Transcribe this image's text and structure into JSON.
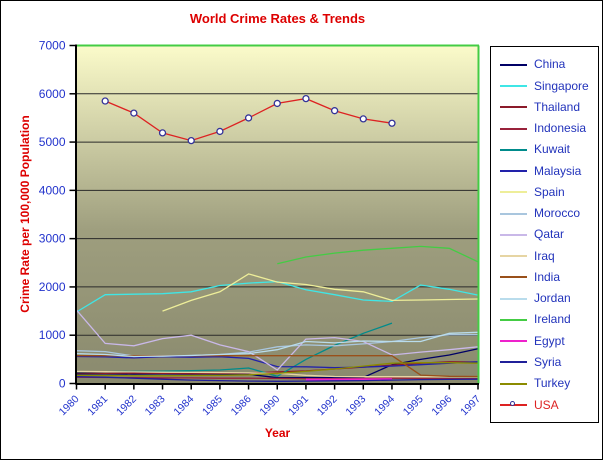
{
  "window": {
    "title": "World Crime Rates & Trends"
  },
  "colors": {
    "title_text": "#dd0000",
    "axis_title_text": "#dd0000",
    "tick_label_text": "#2233cc",
    "legend_label_text": "#2233bb",
    "usa_legend_label_text": "#dd2222",
    "plot_top_right_border": "#44cc44",
    "axis_line": "#000000",
    "gridline": "#2a2a2a",
    "plot_bg_top": "#fbfbca",
    "plot_bg_mid": "#9e9e7e",
    "plot_bg_bottom": "#8a8a6e",
    "marker_outline": "#333399",
    "marker_fill": "#ffffff"
  },
  "chart_data": {
    "type": "line",
    "title": "World Crime Rates & Trends",
    "xlabel": "Year",
    "ylabel": "Crime Rate per 100,000 Population",
    "ylim": [
      0,
      7000
    ],
    "ytick_interval": 1000,
    "grid": "horizontal-only",
    "legend_position": "right",
    "categories": [
      "1980",
      "1981",
      "1982",
      "1983",
      "1984",
      "1985",
      "1986",
      "1990",
      "1991",
      "1992",
      "1993",
      "1994",
      "1995",
      "1996",
      "1997"
    ],
    "series": [
      {
        "name": "China",
        "color": "#000066",
        "marker": false,
        "values": [
          200,
          200,
          195,
          200,
          195,
          200,
          190,
          120,
          120,
          120,
          125,
          390,
          500,
          590,
          720
        ]
      },
      {
        "name": "Singapore",
        "color": "#3fe6e6",
        "marker": false,
        "values": [
          1480,
          1840,
          1850,
          1860,
          1900,
          2030,
          2080,
          2110,
          1940,
          1840,
          1730,
          1700,
          2040,
          1950,
          1830
        ]
      },
      {
        "name": "Thailand",
        "color": "#8b1a2a",
        "marker": false,
        "values": [
          220,
          210,
          215,
          210,
          205,
          210,
          215,
          240,
          260,
          300,
          340,
          380,
          420,
          450,
          445
        ]
      },
      {
        "name": "Indonesia",
        "color": "#99223b",
        "marker": false,
        "values": [
          130,
          125,
          120,
          115,
          115,
          110,
          110,
          105,
          100,
          100,
          105,
          110,
          105,
          100,
          100
        ]
      },
      {
        "name": "Kuwait",
        "color": "#008b8b",
        "marker": false,
        "values": [
          240,
          245,
          250,
          255,
          265,
          280,
          320,
          150,
          500,
          790,
          1040,
          1250,
          null,
          null,
          null
        ]
      },
      {
        "name": "Malaysia",
        "color": "#2222aa",
        "marker": false,
        "values": [
          560,
          550,
          530,
          555,
          545,
          555,
          520,
          350,
          345,
          330,
          340,
          360,
          390,
          420,
          450
        ]
      },
      {
        "name": "Spain",
        "color": "#eeee99",
        "marker": false,
        "values": [
          null,
          null,
          null,
          1500,
          1720,
          1900,
          2270,
          2100,
          2050,
          1950,
          1900,
          1720,
          1730,
          1740,
          1750
        ]
      },
      {
        "name": "Morocco",
        "color": "#a9c6de",
        "marker": false,
        "values": [
          680,
          660,
          570,
          565,
          580,
          600,
          650,
          760,
          800,
          780,
          820,
          870,
          950,
          1010,
          1010
        ]
      },
      {
        "name": "Qatar",
        "color": "#c9b8e8",
        "marker": false,
        "values": [
          1520,
          830,
          780,
          930,
          1000,
          800,
          660,
          280,
          920,
          950,
          870,
          590,
          650,
          700,
          760
        ]
      },
      {
        "name": "Iraq",
        "color": "#e6d5a3",
        "marker": false,
        "values": [
          250,
          245,
          240,
          235,
          230,
          225,
          220,
          210,
          170,
          145,
          140,
          140,
          140,
          140,
          140
        ]
      },
      {
        "name": "India",
        "color": "#99501a",
        "marker": false,
        "values": [
          575,
          575,
          575,
          575,
          575,
          575,
          575,
          575,
          575,
          575,
          575,
          575,
          175,
          150,
          145
        ]
      },
      {
        "name": "Jordan",
        "color": "#b9dcec",
        "marker": false,
        "values": [
          620,
          600,
          560,
          570,
          580,
          600,
          620,
          700,
          870,
          840,
          880,
          870,
          870,
          1040,
          1060
        ]
      },
      {
        "name": "Ireland",
        "color": "#44cc44",
        "marker": false,
        "values": [
          null,
          null,
          null,
          null,
          null,
          null,
          null,
          2480,
          2620,
          2700,
          2760,
          2800,
          2840,
          2800,
          2520
        ]
      },
      {
        "name": "Egypt",
        "color": "#ee22cc",
        "marker": false,
        "values": [
          null,
          null,
          null,
          null,
          null,
          null,
          null,
          null,
          80,
          80,
          85,
          90,
          null,
          null,
          null
        ]
      },
      {
        "name": "Syria",
        "color": "#202099",
        "marker": false,
        "values": [
          140,
          130,
          110,
          90,
          70,
          60,
          50,
          45,
          50,
          55,
          60,
          70,
          80,
          85,
          90
        ]
      },
      {
        "name": "Turkey",
        "color": "#8b8b00",
        "marker": false,
        "values": [
          170,
          165,
          160,
          160,
          165,
          170,
          180,
          210,
          250,
          300,
          360,
          420,
          430,
          430,
          420
        ]
      },
      {
        "name": "USA",
        "color": "#dd2222",
        "marker": true,
        "values": [
          null,
          5850,
          5600,
          5190,
          5030,
          5220,
          5500,
          5800,
          5900,
          5650,
          5480,
          5390,
          null,
          null,
          null
        ]
      }
    ]
  }
}
